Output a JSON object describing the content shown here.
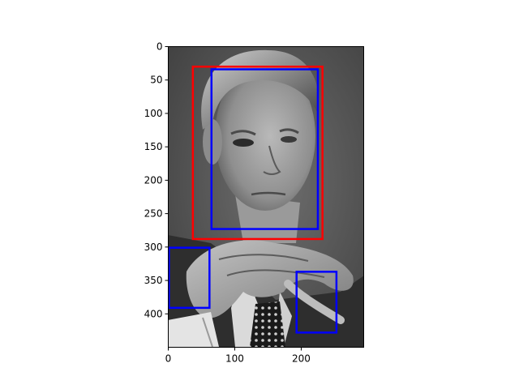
{
  "chart_data": {
    "type": "image-with-boxes",
    "title": "",
    "xlabel": "",
    "ylabel": "",
    "image": {
      "description": "grayscale photo",
      "width": 294,
      "height": 450
    },
    "xlim": [
      0,
      294
    ],
    "ylim": [
      450,
      0
    ],
    "x_ticks": [
      0,
      100,
      200
    ],
    "y_ticks": [
      0,
      50,
      100,
      150,
      200,
      250,
      300,
      350,
      400
    ],
    "boxes": [
      {
        "color": "#ff0000",
        "x0": 37,
        "y0": 30,
        "x1": 232,
        "y1": 288
      },
      {
        "color": "#0000ff",
        "x0": 65,
        "y0": 34,
        "x1": 225,
        "y1": 273
      },
      {
        "color": "#0000ff",
        "x0": 1,
        "y0": 301,
        "x1": 62,
        "y1": 391
      },
      {
        "color": "#0000ff",
        "x0": 193,
        "y0": 337,
        "x1": 253,
        "y1": 428
      }
    ]
  }
}
